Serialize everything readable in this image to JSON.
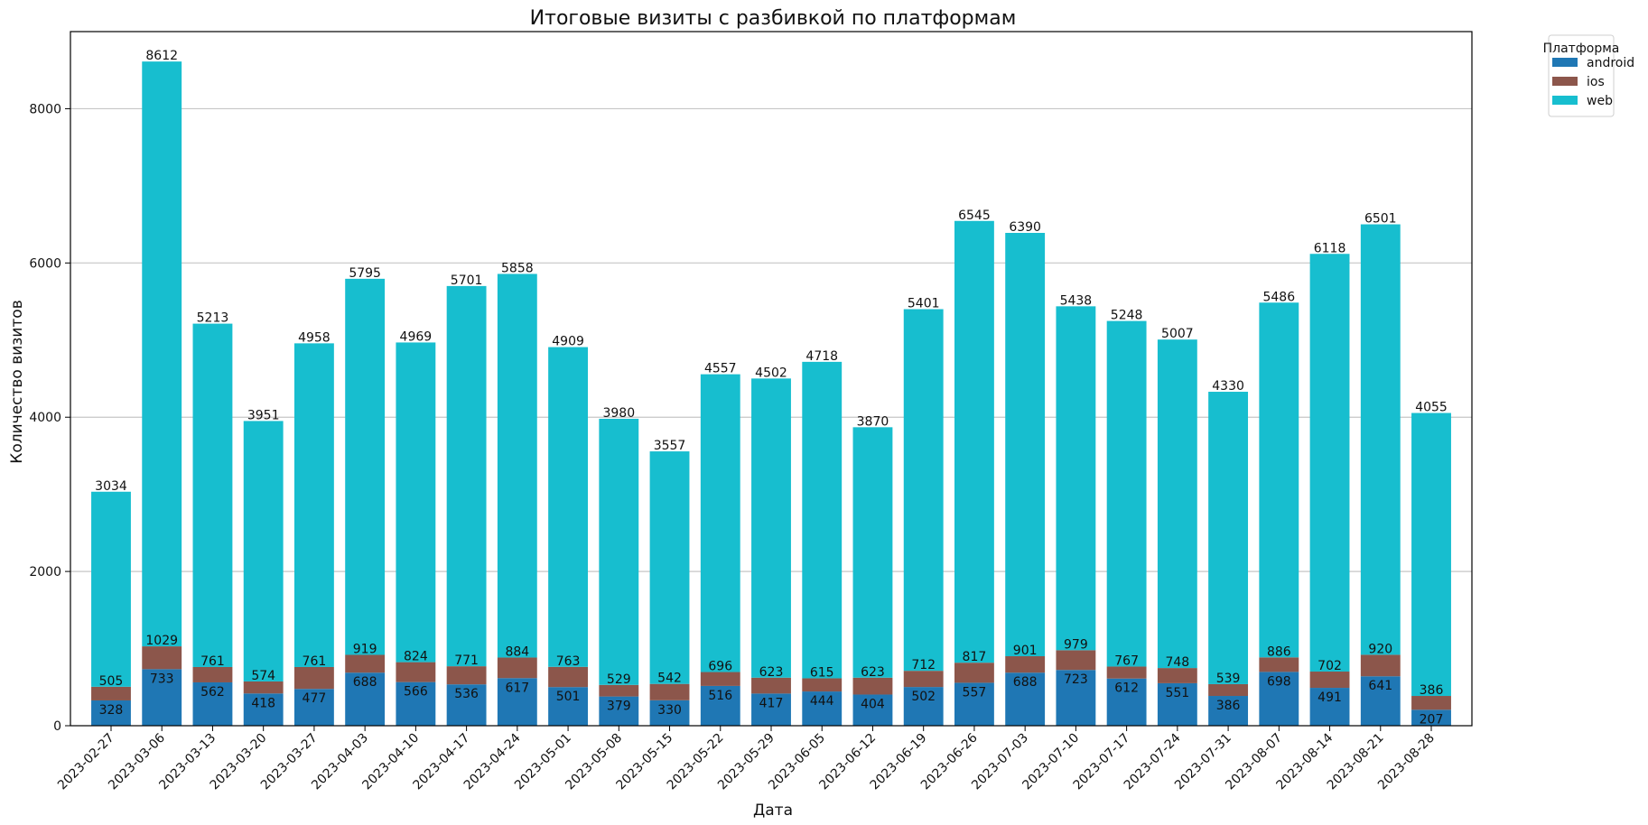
{
  "chart_data": {
    "type": "bar",
    "stacked": true,
    "title": "Итоговые визиты с разбивкой по платформам",
    "xlabel": "Дата",
    "ylabel": "Количество визитов",
    "ylim": [
      0,
      9000
    ],
    "yticks": [
      0,
      2000,
      4000,
      6000,
      8000
    ],
    "grid": "y",
    "legend": {
      "title": "Платформа",
      "placement": "outside-top-right"
    },
    "categories": [
      "2023-02-27",
      "2023-03-06",
      "2023-03-13",
      "2023-03-20",
      "2023-03-27",
      "2023-04-03",
      "2023-04-10",
      "2023-04-17",
      "2023-04-24",
      "2023-05-01",
      "2023-05-08",
      "2023-05-15",
      "2023-05-22",
      "2023-05-29",
      "2023-06-05",
      "2023-06-12",
      "2023-06-19",
      "2023-06-26",
      "2023-07-03",
      "2023-07-10",
      "2023-07-17",
      "2023-07-24",
      "2023-07-31",
      "2023-08-07",
      "2023-08-14",
      "2023-08-21",
      "2023-08-28"
    ],
    "series": [
      {
        "name": "android",
        "color": "#1f77b4",
        "values": [
          328,
          733,
          562,
          418,
          477,
          688,
          566,
          536,
          617,
          501,
          379,
          330,
          516,
          417,
          444,
          404,
          502,
          557,
          688,
          723,
          612,
          551,
          386,
          698,
          491,
          641,
          207
        ]
      },
      {
        "name": "ios",
        "color": "#8c564b",
        "values": [
          177,
          296,
          199,
          156,
          284,
          231,
          258,
          235,
          267,
          262,
          150,
          212,
          180,
          206,
          171,
          219,
          210,
          260,
          213,
          256,
          155,
          197,
          153,
          188,
          211,
          279,
          179
        ]
      },
      {
        "name": "web",
        "color": "#17becf",
        "values": [
          2529,
          7583,
          4452,
          3377,
          4197,
          4876,
          4145,
          4930,
          4974,
          4146,
          3451,
          3015,
          3861,
          3879,
          4103,
          3247,
          4689,
          5728,
          5489,
          4459,
          4481,
          4259,
          3791,
          4600,
          5416,
          5581,
          3669
        ]
      }
    ],
    "bar_labels": {
      "android": [
        328,
        733,
        562,
        418,
        477,
        688,
        566,
        536,
        617,
        501,
        379,
        330,
        516,
        417,
        444,
        404,
        502,
        557,
        688,
        723,
        612,
        551,
        386,
        698,
        491,
        641,
        207
      ],
      "ios_cumulative": [
        505,
        1029,
        761,
        574,
        761,
        919,
        824,
        771,
        884,
        763,
        529,
        542,
        696,
        623,
        615,
        623,
        712,
        817,
        901,
        979,
        767,
        748,
        539,
        886,
        702,
        920,
        386
      ],
      "totals": [
        3034,
        8612,
        5213,
        3951,
        4958,
        5795,
        4969,
        5701,
        5858,
        4909,
        3980,
        3557,
        4557,
        4502,
        4718,
        3870,
        5401,
        6545,
        6390,
        5438,
        5248,
        5007,
        4330,
        5486,
        6118,
        6501,
        4055
      ]
    }
  }
}
